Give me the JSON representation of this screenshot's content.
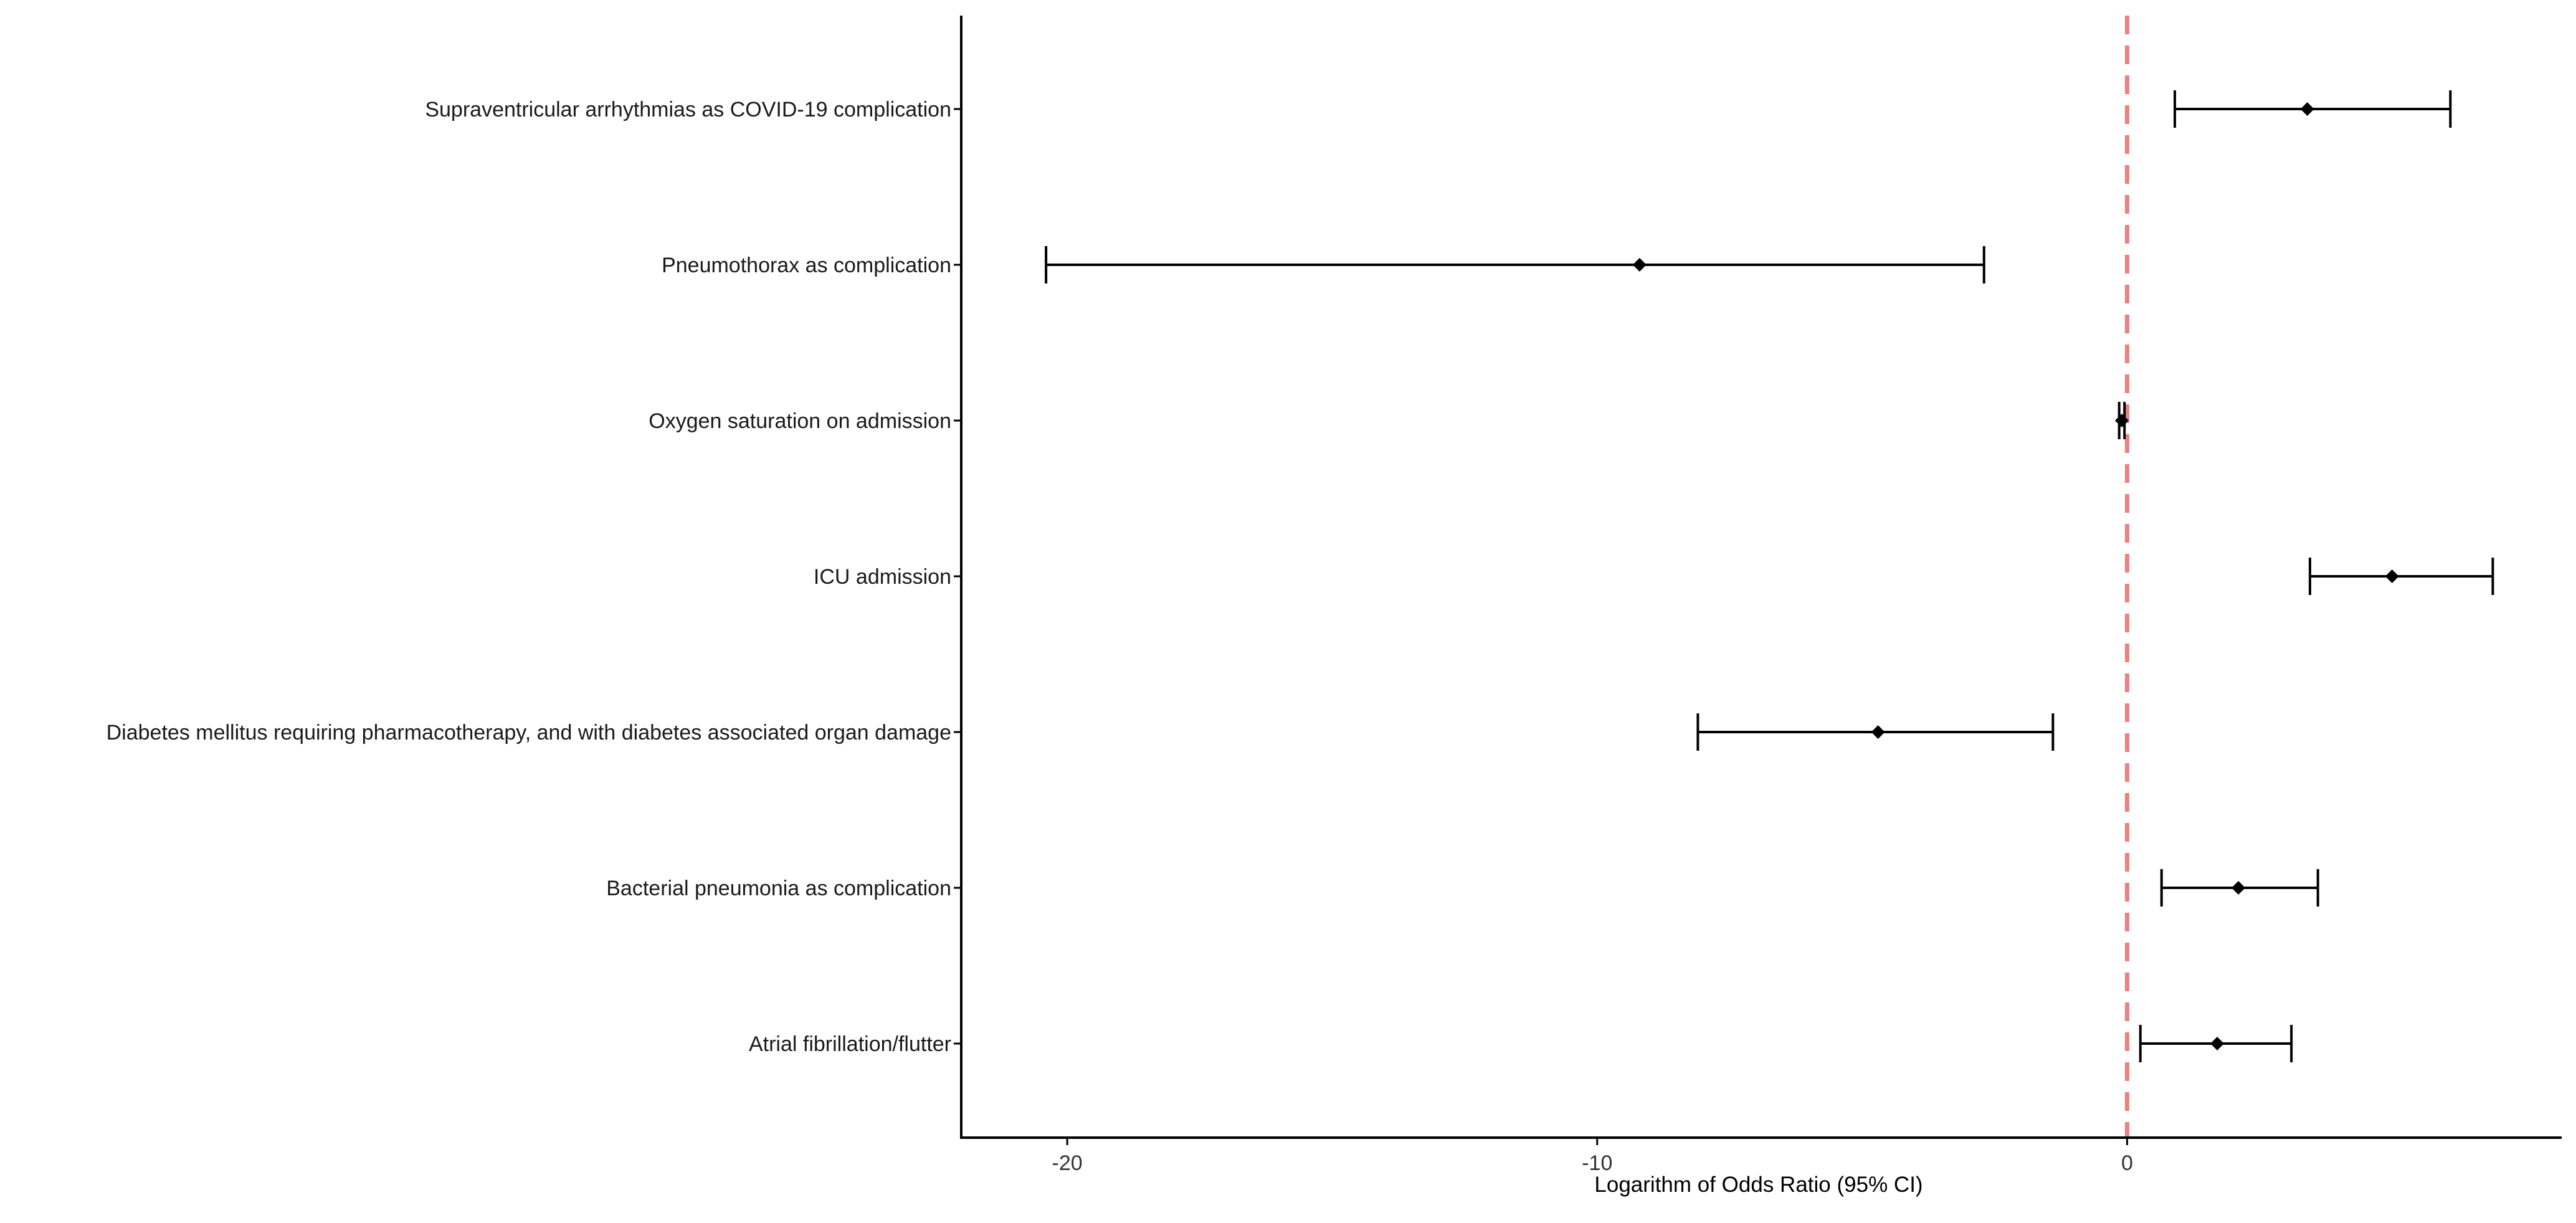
{
  "chart_data": {
    "type": "forest",
    "title": "",
    "xlabel": "Logarithm of Odds Ratio (95% CI)",
    "ylabel": "",
    "xlim": [
      -22,
      8.2
    ],
    "x_ticks": [
      -20,
      -10,
      0
    ],
    "x_tick_labels": [
      "-20",
      "-10",
      "0"
    ],
    "reference_line": {
      "x": 0,
      "style": "dashed"
    },
    "grid": false,
    "legend": "none",
    "categories": [
      "Supraventricular arrhythmias as COVID-19 complication",
      "Pneumothorax as complication",
      "Oxygen saturation on admission",
      "ICU admission",
      "Diabetes mellitus requiring pharmacotherapy,  and with diabetes associated organ damage",
      "Bacterial pneumonia as complication",
      "Atrial fibrillation/flutter"
    ],
    "estimates": [
      3.4,
      -9.2,
      -0.1,
      5.0,
      -4.7,
      2.1,
      1.7
    ],
    "lower": [
      0.9,
      -20.4,
      -0.15,
      3.45,
      -8.1,
      0.65,
      0.25
    ],
    "upper": [
      6.1,
      -2.7,
      -0.05,
      6.9,
      -1.4,
      3.6,
      3.1
    ],
    "colors": {
      "point": "#000000",
      "ci": "#000000",
      "reference": "#F08080"
    }
  }
}
